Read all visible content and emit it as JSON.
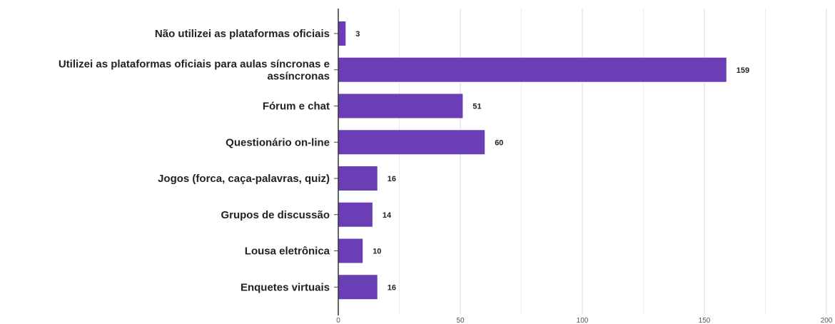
{
  "chart_data": {
    "type": "bar",
    "orientation": "horizontal",
    "categories": [
      [
        "Não utilizei as plataformas oficiais"
      ],
      [
        "Utilizei as plataformas oficiais para aulas síncronas e",
        "assíncronas"
      ],
      [
        "Fórum e chat"
      ],
      [
        "Questionário on-line"
      ],
      [
        "Jogos (forca, caça-palavras, quiz)"
      ],
      [
        "Grupos de discussão"
      ],
      [
        "Lousa eletrônica"
      ],
      [
        "Enquetes virtuais"
      ]
    ],
    "values": [
      3,
      159,
      51,
      60,
      16,
      14,
      10,
      16
    ],
    "xlim": [
      0,
      200
    ],
    "xticks": [
      0,
      50,
      100,
      150,
      200
    ],
    "grid": "vertical",
    "data_labels": true,
    "bar_color": "#6a3fb6"
  }
}
